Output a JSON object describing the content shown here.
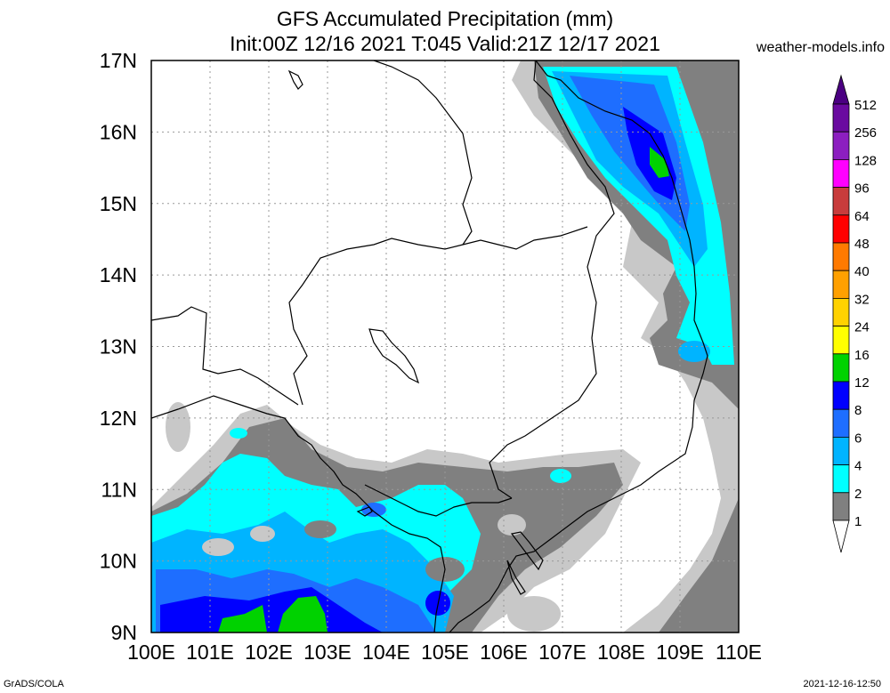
{
  "title_line1": "GFS Accumulated Precipitation (mm)",
  "title_line2": "Init:00Z 12/16 2021 T:045 Valid:21Z 12/17 2021",
  "site": "weather-models.info",
  "footer_left": "GrADS/COLA",
  "footer_right": "2021-12-16-12:50",
  "map": {
    "lon_range": [
      100,
      110
    ],
    "lat_range": [
      9,
      17
    ],
    "lon_ticks": [
      "100E",
      "101E",
      "102E",
      "103E",
      "104E",
      "105E",
      "106E",
      "107E",
      "108E",
      "109E",
      "110E"
    ],
    "lat_ticks": [
      "17N",
      "16N",
      "15N",
      "14N",
      "13N",
      "12N",
      "11N",
      "10N",
      "9N"
    ],
    "grid": true
  },
  "legend": {
    "levels": [
      {
        "label": "512",
        "color": "#6a0aa0"
      },
      {
        "label": "256",
        "color": "#8c1ec0"
      },
      {
        "label": "128",
        "color": "#ff00ff"
      },
      {
        "label": "96",
        "color": "#c83c3c"
      },
      {
        "label": "64",
        "color": "#ff0000"
      },
      {
        "label": "48",
        "color": "#ff7a00"
      },
      {
        "label": "40",
        "color": "#ffa000"
      },
      {
        "label": "32",
        "color": "#ffd200"
      },
      {
        "label": "24",
        "color": "#ffff00"
      },
      {
        "label": "16",
        "color": "#00d200"
      },
      {
        "label": "12",
        "color": "#0000ff"
      },
      {
        "label": "8",
        "color": "#1e6eff"
      },
      {
        "label": "6",
        "color": "#00b4ff"
      },
      {
        "label": "4",
        "color": "#00ffff"
      },
      {
        "label": "2",
        "color": "#808080"
      },
      {
        "label": "1",
        "color": "#c8c8c8"
      }
    ],
    "top_cap_color": "#4b0082"
  }
}
